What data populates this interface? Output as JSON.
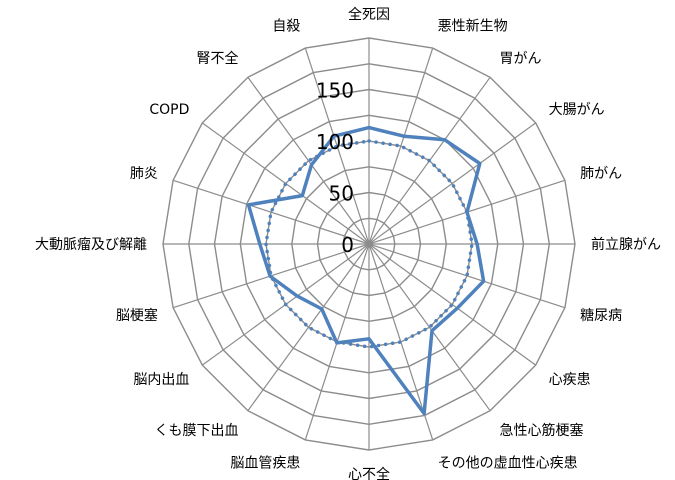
{
  "chart_data": {
    "type": "radar",
    "categories": [
      "全死因",
      "悪性新生物",
      "胃がん",
      "大腸がん",
      "肺がん",
      "前立腺がん",
      "糖尿病",
      "心疾患",
      "急性心筋梗塞",
      "その他の虚血性心疾患",
      "心不全",
      "脳血管疾患",
      "くも膜下出血",
      "脳内出血",
      "脳梗塞",
      "大動脈瘤及び解離",
      "肺炎",
      "COPD",
      "腎不全",
      "自殺"
    ],
    "rlim": [
      0,
      200
    ],
    "ticks": [
      "0",
      "50",
      "100",
      "150"
    ],
    "tick_values": [
      0,
      50,
      100,
      150
    ],
    "series": [
      {
        "style": "solid",
        "values": [
          113,
          110,
          125,
          133,
          100,
          105,
          117,
          106,
          104,
          173,
          92,
          101,
          78,
          86,
          101,
          106,
          123,
          80,
          95,
          110
        ]
      },
      {
        "style": "dotted",
        "values": [
          100,
          100,
          100,
          100,
          100,
          100,
          100,
          100,
          100,
          100,
          100,
          100,
          100,
          100,
          100,
          100,
          100,
          100,
          100,
          100
        ]
      }
    ],
    "colors": {
      "series": "#4f81bd",
      "grid": "#8c8c8c"
    }
  }
}
